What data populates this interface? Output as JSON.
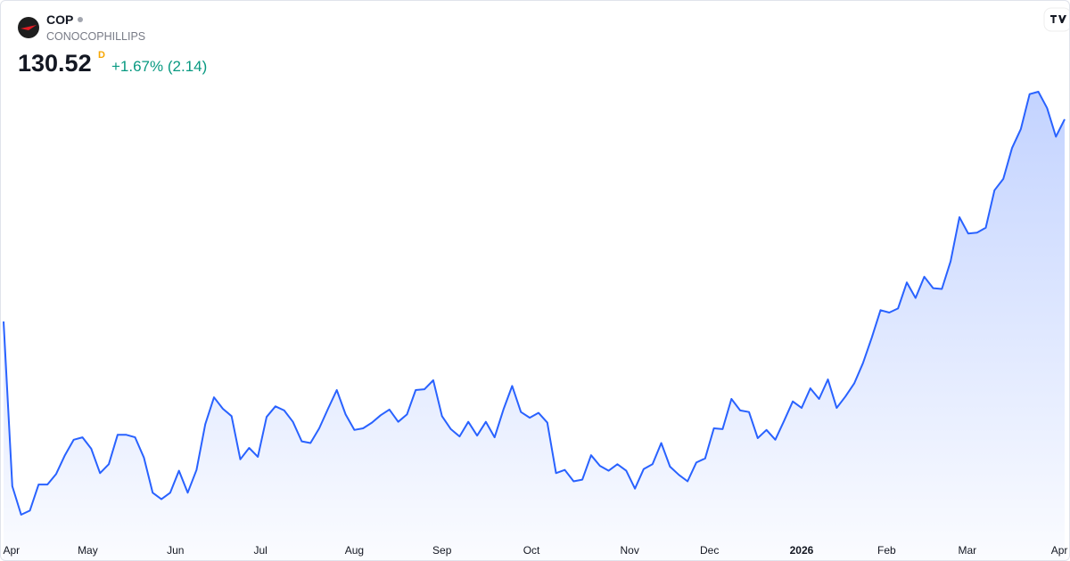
{
  "chart_data": {
    "type": "area",
    "symbol": "COP",
    "name": "CONOCOPHILLIPS",
    "price": 130.52,
    "interval": "D",
    "change": "+1.67% (2.14)",
    "color": "#2962ff",
    "values": [
      105.7,
      85.5,
      82.0,
      82.5,
      85.7,
      85.7,
      87.0,
      89.3,
      91.2,
      91.5,
      90.1,
      87.1,
      88.2,
      91.8,
      91.8,
      91.5,
      89.0,
      84.7,
      83.9,
      84.7,
      87.4,
      84.7,
      87.5,
      93.1,
      96.4,
      95.0,
      94.1,
      88.8,
      90.2,
      89.1,
      94.0,
      95.3,
      94.8,
      93.4,
      91.0,
      90.8,
      92.6,
      95.0,
      97.3,
      94.3,
      92.4,
      92.6,
      93.3,
      94.2,
      94.9,
      93.4,
      94.3,
      97.3,
      97.4,
      98.5,
      94.1,
      92.5,
      91.6,
      93.4,
      91.7,
      93.4,
      91.5,
      94.9,
      97.8,
      94.6,
      93.9,
      94.5,
      93.3,
      87.1,
      87.5,
      86.1,
      86.3,
      89.3,
      88.0,
      87.4,
      88.2,
      87.4,
      85.2,
      87.6,
      88.2,
      90.8,
      87.9,
      86.9,
      86.1,
      88.4,
      88.9,
      92.6,
      92.5,
      96.2,
      94.8,
      94.6,
      91.4,
      92.4,
      91.2,
      93.5,
      95.9,
      95.1,
      97.5,
      96.2,
      98.6,
      95.1,
      96.5,
      98.1,
      100.6,
      103.7,
      107.1,
      106.8,
      107.3,
      110.5,
      108.6,
      111.2,
      109.8,
      109.7,
      113.1,
      118.5,
      116.5,
      116.6,
      117.2,
      121.8,
      123.2,
      127.0,
      129.3,
      133.6,
      133.9,
      131.9,
      128.38,
      130.52
    ],
    "xticks": [
      {
        "value": 0.9,
        "label": "Apr"
      },
      {
        "value": 9.6,
        "label": "May"
      },
      {
        "value": 19.6,
        "label": "Jun"
      },
      {
        "value": 29.3,
        "label": "Jul"
      },
      {
        "value": 40,
        "label": "Aug"
      },
      {
        "value": 50,
        "label": "Sep"
      },
      {
        "value": 60.2,
        "label": "Oct"
      },
      {
        "value": 71.4,
        "label": "Nov"
      },
      {
        "value": 80.5,
        "label": "Dec"
      },
      {
        "value": 91,
        "label": "2026"
      },
      {
        "value": 100.7,
        "label": "Feb"
      },
      {
        "value": 109.9,
        "label": "Mar"
      },
      {
        "value": 120.4,
        "label": "Apr"
      }
    ]
  }
}
